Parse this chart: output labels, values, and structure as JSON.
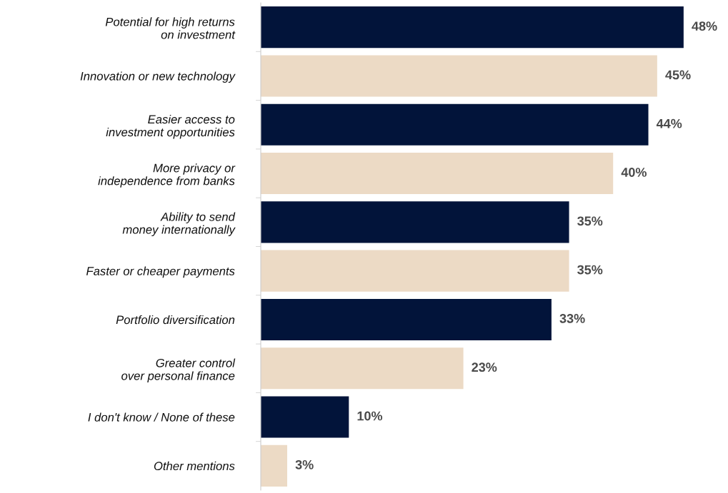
{
  "chart_data": {
    "type": "bar",
    "orientation": "horizontal",
    "categories": [
      "Potential for high returns\non investment",
      "Innovation or new technology",
      "Easier access to\ninvestment opportunities",
      "More privacy or\nindependence from banks",
      "Ability to send\nmoney internationally",
      "Faster or cheaper payments",
      "Portfolio diversification",
      "Greater control\nover personal finance",
      "I don't know / None of these",
      "Other mentions"
    ],
    "values": [
      48,
      45,
      44,
      40,
      35,
      35,
      33,
      23,
      10,
      3
    ],
    "colors": [
      "#02143a",
      "#ecdac5",
      "#02143a",
      "#ecdac5",
      "#02143a",
      "#ecdac5",
      "#02143a",
      "#ecdac5",
      "#02143a",
      "#ecdac5"
    ],
    "value_labels": [
      "48%",
      "45%",
      "44%",
      "40%",
      "35%",
      "35%",
      "33%",
      "23%",
      "10%",
      "3%"
    ]
  }
}
